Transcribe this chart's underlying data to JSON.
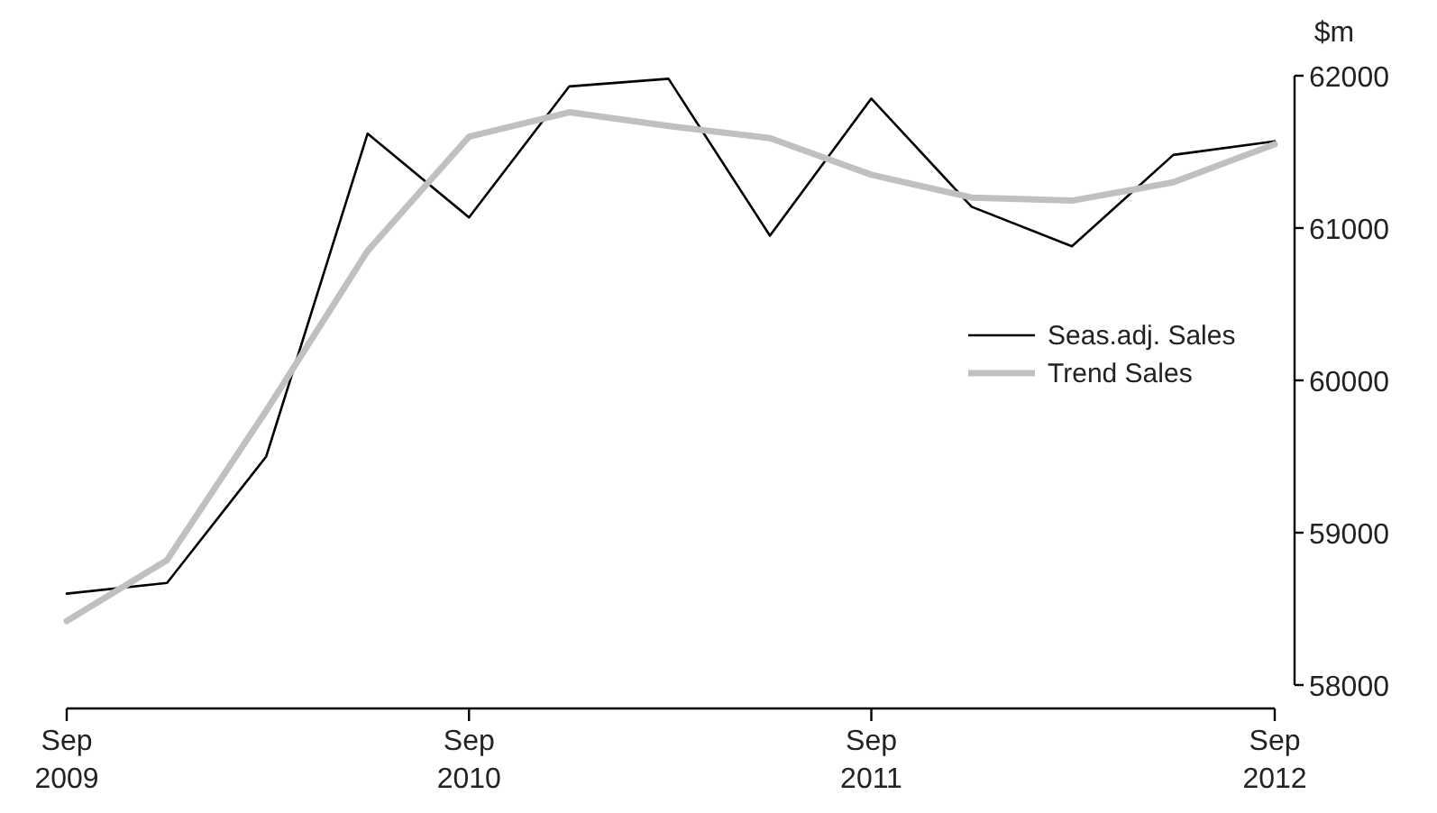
{
  "chart_data": {
    "type": "line",
    "ylabel": "$m",
    "x": [
      "2009-09",
      "2009-12",
      "2010-03",
      "2010-06",
      "2010-09",
      "2010-12",
      "2011-03",
      "2011-06",
      "2011-09",
      "2011-12",
      "2012-03",
      "2012-06",
      "2012-09"
    ],
    "series": [
      {
        "name": "Seas.adj. Sales",
        "color": "#000000",
        "values": [
          58600,
          58670,
          59500,
          61620,
          61070,
          61930,
          61980,
          60950,
          61850,
          61140,
          60880,
          61480,
          61570
        ]
      },
      {
        "name": "Trend Sales",
        "color": "#c0c0c0",
        "values": [
          58420,
          58820,
          59800,
          60850,
          61600,
          61760,
          61670,
          61590,
          61350,
          61200,
          61180,
          61300,
          61550
        ]
      }
    ],
    "xlim": [
      "2009-09",
      "2012-09"
    ],
    "xticks": [
      {
        "value": "2009-09",
        "label": "Sep\n2009"
      },
      {
        "value": "2010-09",
        "label": "Sep\n2010"
      },
      {
        "value": "2011-09",
        "label": "Sep\n2011"
      },
      {
        "value": "2012-09",
        "label": "Sep\n2012"
      }
    ],
    "ylim": [
      58000,
      62000
    ],
    "yticks": [
      58000,
      59000,
      60000,
      61000,
      62000
    ],
    "grid": false,
    "legend": "right",
    "marker": "none",
    "line_style": "solid"
  }
}
